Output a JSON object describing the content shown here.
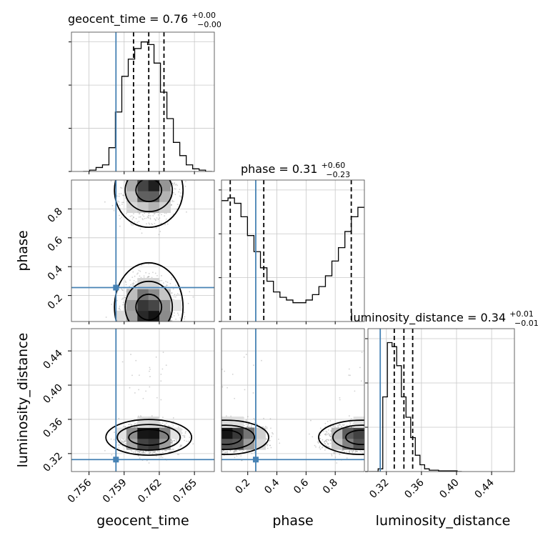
{
  "chart_data": {
    "type": "corner",
    "parameters": [
      "geocent_time",
      "phase",
      "luminosity_distance"
    ],
    "truths": {
      "geocent_time": 0.7583,
      "phase": 0.255,
      "luminosity_distance": 0.313
    },
    "titles": [
      {
        "name": "geocent_time = 0.76",
        "sup": "+0.00",
        "sub": "−0.00"
      },
      {
        "name": "phase = 0.31",
        "sup": "+0.60",
        "sub": "−0.23"
      },
      {
        "name": "luminosity_distance = 0.34",
        "sup": "+0.01",
        "sub": "−0.01"
      }
    ],
    "axis_labels": {
      "geocent_time": "geocent_time",
      "phase": "phase",
      "luminosity_distance": "luminosity_distance"
    },
    "ranges": {
      "geocent_time": [
        0.7545,
        0.7667
      ],
      "phase": [
        0.02,
        1.0
      ],
      "luminosity_distance": [
        0.299,
        0.466
      ]
    },
    "ticks": {
      "geocent_time": {
        "values": [
          0.756,
          0.759,
          0.762,
          0.765
        ],
        "labels": [
          "0.756",
          "0.759",
          "0.762",
          "0.765"
        ]
      },
      "phase": {
        "values": [
          0.2,
          0.4,
          0.6,
          0.8
        ],
        "labels": [
          "0.2",
          "0.4",
          "0.6",
          "0.8"
        ]
      },
      "luminosity_distance": {
        "values": [
          0.32,
          0.36,
          0.4,
          0.44
        ],
        "labels": [
          "0.32",
          "0.36",
          "0.40",
          "0.44"
        ]
      }
    },
    "quantiles": {
      "geocent_time": [
        0.7598,
        0.7611,
        0.7624
      ],
      "phase": [
        0.08,
        0.31,
        0.91
      ],
      "luminosity_distance": [
        0.329,
        0.34,
        0.35
      ]
    },
    "histograms": {
      "geocent_time": [
        0.0,
        0.01,
        0.03,
        0.05,
        0.18,
        0.45,
        0.72,
        0.85,
        0.93,
        0.98,
        0.96,
        0.82,
        0.6,
        0.4,
        0.22,
        0.12,
        0.05,
        0.02,
        0.01,
        0.0
      ],
      "phase": [
        0.9,
        0.92,
        0.88,
        0.78,
        0.64,
        0.52,
        0.4,
        0.3,
        0.22,
        0.18,
        0.16,
        0.14,
        0.14,
        0.16,
        0.2,
        0.26,
        0.34,
        0.45,
        0.55,
        0.67,
        0.78,
        0.85
      ],
      "luminosity_distance": [
        0.0,
        0.0,
        0.02,
        0.55,
        0.95,
        0.92,
        0.78,
        0.55,
        0.4,
        0.25,
        0.12,
        0.05,
        0.02,
        0.01,
        0.01,
        0.005,
        0.005,
        0.005,
        0.005,
        0.0
      ]
    },
    "histogram_binning": {
      "geocent_time": [
        0.7555,
        0.7665
      ],
      "phase": [
        0.02,
        1.0
      ],
      "luminosity_distance": [
        0.3,
        0.406
      ]
    },
    "posterior_samples": {
      "geocent_time": {
        "mean": 0.7611,
        "sd": 0.00105
      },
      "phase": {
        "mode_centers": [
          0.12,
          0.93
        ],
        "sd": 0.1,
        "weights": [
          0.55,
          0.45
        ]
      },
      "luminosity_distance": {
        "mean": 0.339,
        "sd": 0.008,
        "outlier_max": 0.44
      }
    },
    "grid": true
  }
}
